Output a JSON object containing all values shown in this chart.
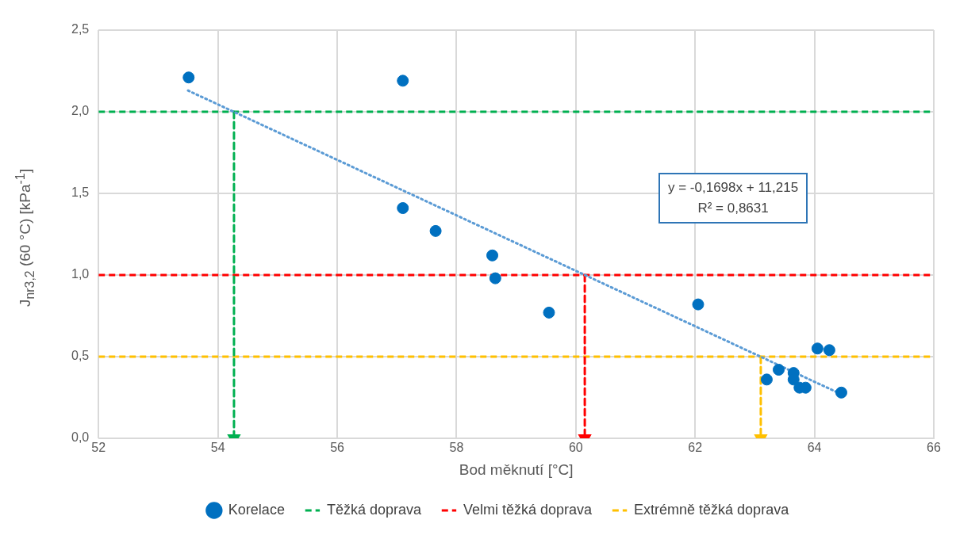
{
  "chart_data": {
    "type": "scatter",
    "xlabel": "Bod měknutí [°C]",
    "ylabel": "J$_{nr3,2}$ (60 °C) [kPa$^{-1}$]",
    "annotations": [
      "y = -0,1698x + 11,215",
      "R² = 0,8631"
    ],
    "xlim": [
      52,
      66
    ],
    "xticks": [
      52,
      54,
      56,
      58,
      60,
      62,
      64,
      66
    ],
    "ylim": [
      0,
      2.5
    ],
    "yticks": [
      {
        "value": 0,
        "label": "0,0"
      },
      {
        "value": 0.5,
        "label": "0,5"
      },
      {
        "value": 1,
        "label": "1,0"
      },
      {
        "value": 1.5,
        "label": "1,5"
      },
      {
        "value": 2,
        "label": "2,0"
      },
      {
        "value": 2.5,
        "label": "2,5"
      }
    ],
    "grid": true,
    "legend": "bottom",
    "marker": "circle",
    "series": [
      {
        "name": "Korelace",
        "color": "#0070c0",
        "x": [
          53.51,
          57.1,
          57.1,
          57.65,
          58.6,
          58.65,
          59.55,
          62.05,
          63.2,
          63.4,
          63.65,
          63.65,
          63.75,
          63.85,
          64.05,
          64.25,
          64.45
        ],
        "values": [
          2.21,
          2.19,
          1.41,
          1.27,
          1.12,
          0.98,
          0.77,
          0.82,
          0.36,
          0.42,
          0.4,
          0.36,
          0.31,
          0.31,
          0.55,
          0.54,
          0.28
        ]
      },
      {
        "type": "line",
        "color": "#5b9bd5",
        "line_style": "dotted",
        "marker": "none",
        "x": [
          53.5,
          64.45
        ],
        "values": [
          2.13,
          0.27
        ]
      },
      {
        "type": "line",
        "color": "#00b050",
        "line_style": "dashed",
        "marker": "triangle",
        "x": [
          54.27,
          54.27
        ],
        "values": [
          2.0,
          0.0
        ]
      },
      {
        "type": "line",
        "color": "#ff0000",
        "line_style": "dashed",
        "marker": "triangle",
        "x": [
          60.15,
          60.15
        ],
        "values": [
          1.0,
          0.0
        ]
      },
      {
        "type": "line",
        "color": "#ffc000",
        "line_style": "dashed",
        "marker": "triangle",
        "x": [
          63.1,
          63.1
        ],
        "values": [
          0.5,
          0.0
        ]
      }
    ],
    "ref_lines": [
      {
        "axis": "y",
        "value": 2,
        "label": "Těžká doprava",
        "color": "#00b050",
        "line_style": "dashed"
      },
      {
        "axis": "y",
        "value": 1,
        "label": "Velmi těžká doprava",
        "color": "#ff0000",
        "line_style": "dashed"
      },
      {
        "axis": "y",
        "value": 0.5,
        "label": "Extrémně těžká doprava",
        "color": "#ffc000",
        "line_style": "dashed"
      }
    ]
  }
}
